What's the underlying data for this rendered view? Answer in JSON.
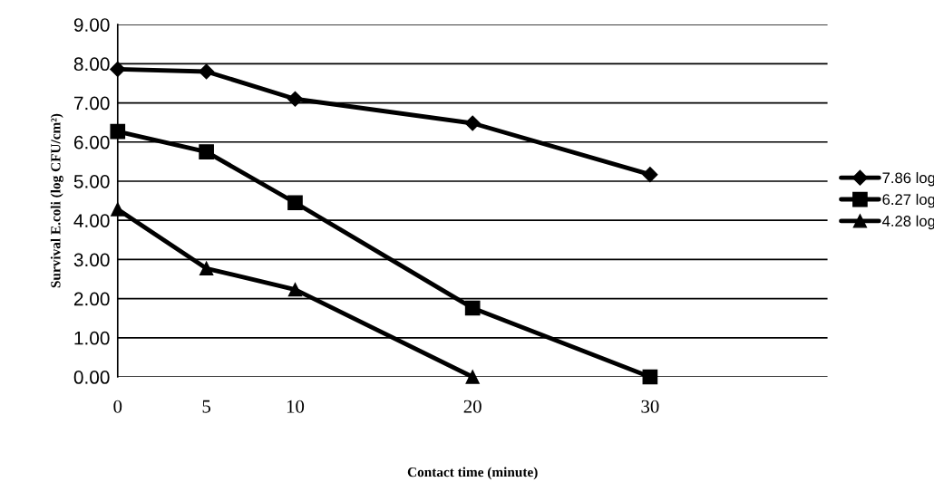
{
  "chart_data": {
    "type": "line",
    "xlabel": "Contact time (minute)",
    "ylabel": "Survival E.coli (log CFU/cm²)",
    "xlim": [
      0,
      40
    ],
    "xticks": [
      0,
      5,
      10,
      20,
      30
    ],
    "ylim": [
      0,
      9
    ],
    "yticks": [
      {
        "value": 0,
        "label": "0.00"
      },
      {
        "value": 1,
        "label": "1.00"
      },
      {
        "value": 2,
        "label": "2.00"
      },
      {
        "value": 3,
        "label": "3.00"
      },
      {
        "value": 4,
        "label": "4.00"
      },
      {
        "value": 5,
        "label": "5.00"
      },
      {
        "value": 6,
        "label": "6.00"
      },
      {
        "value": 7,
        "label": "7.00"
      },
      {
        "value": 8,
        "label": "8.00"
      },
      {
        "value": 9,
        "label": "9.00"
      }
    ],
    "grid": "y",
    "legend": "right",
    "series": [
      {
        "name": "7.86 log",
        "color": "#000000",
        "marker": "diamond",
        "x": [
          0,
          5,
          10,
          20,
          30
        ],
        "values": [
          7.86,
          7.8,
          7.1,
          6.48,
          5.17
        ]
      },
      {
        "name": "6.27 log",
        "color": "#000000",
        "marker": "square",
        "x": [
          0,
          5,
          10,
          20,
          30
        ],
        "values": [
          6.27,
          5.75,
          4.45,
          1.76,
          0
        ]
      },
      {
        "name": "4.28 log",
        "color": "#000000",
        "marker": "triangle",
        "x": [
          0,
          5,
          10,
          20
        ],
        "values": [
          4.28,
          2.77,
          2.23,
          0
        ]
      }
    ]
  }
}
